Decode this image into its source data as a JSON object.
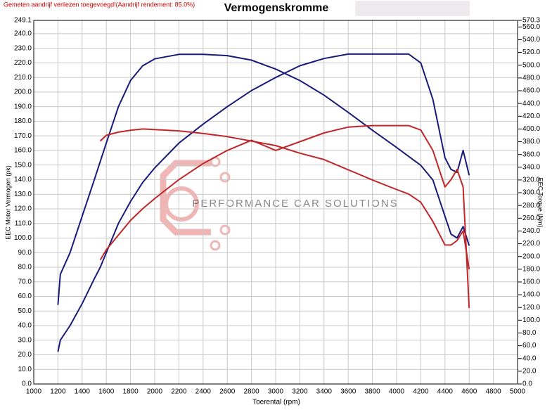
{
  "chart_data": {
    "type": "line",
    "title": "Vermogenskromme",
    "subtitle": "Gemeten aandrijf verliezen toegevoegd!(Aandrijf rendement: 85.0%)",
    "watermark": "PERFORMANCE CAR SOLUTIONS",
    "xlabel": "Toerental (rpm)",
    "ylabel": "EEC Motor Vermogen (pk)",
    "y2label": "EEC Torque (Nm)",
    "grid": true,
    "xlim": [
      1000,
      5000
    ],
    "xticks": [
      1000,
      1200,
      1400,
      1600,
      1800,
      2000,
      2200,
      2400,
      2600,
      2800,
      3000,
      3200,
      3400,
      3600,
      3800,
      4000,
      4200,
      4400,
      4600,
      4800,
      5000
    ],
    "ylim": [
      0,
      249.1
    ],
    "yticks": [
      {
        "value": 0,
        "label": "0.0"
      },
      {
        "value": 10,
        "label": "10.0"
      },
      {
        "value": 20,
        "label": "20.0"
      },
      {
        "value": 30,
        "label": "30.0"
      },
      {
        "value": 40,
        "label": "40.0"
      },
      {
        "value": 50,
        "label": "50.0"
      },
      {
        "value": 60,
        "label": "60.0"
      },
      {
        "value": 70,
        "label": "70.0"
      },
      {
        "value": 80,
        "label": "80.0"
      },
      {
        "value": 90,
        "label": "90.0"
      },
      {
        "value": 100,
        "label": "100.0"
      },
      {
        "value": 110,
        "label": "110.0"
      },
      {
        "value": 120,
        "label": "120.0"
      },
      {
        "value": 130,
        "label": "130.0"
      },
      {
        "value": 140,
        "label": "140.0"
      },
      {
        "value": 150,
        "label": "150.0"
      },
      {
        "value": 160,
        "label": "160.0"
      },
      {
        "value": 170,
        "label": "170.0"
      },
      {
        "value": 180,
        "label": "180.0"
      },
      {
        "value": 190,
        "label": "190.0"
      },
      {
        "value": 200,
        "label": "200.0"
      },
      {
        "value": 210,
        "label": "210.0"
      },
      {
        "value": 220,
        "label": "220.0"
      },
      {
        "value": 230,
        "label": "230.0"
      },
      {
        "value": 240,
        "label": "240.0"
      },
      249.1
    ],
    "y2lim": [
      0,
      570.3
    ],
    "y2ticks": [
      {
        "value": 0,
        "label": "0.0"
      },
      {
        "value": 20,
        "label": "20.0"
      },
      {
        "value": 40,
        "label": "40.0"
      },
      {
        "value": 60,
        "label": "60.0"
      },
      {
        "value": 80,
        "label": "80.0"
      },
      {
        "value": 100,
        "label": "100.0"
      },
      {
        "value": 120,
        "label": "120.0"
      },
      {
        "value": 140,
        "label": "140.0"
      },
      {
        "value": 160,
        "label": "160.0"
      },
      {
        "value": 180,
        "label": "180.0"
      },
      {
        "value": 200,
        "label": "200.0"
      },
      {
        "value": 220,
        "label": "220.0"
      },
      {
        "value": 240,
        "label": "240.0"
      },
      {
        "value": 260,
        "label": "260.0"
      },
      {
        "value": 280,
        "label": "280.0"
      },
      {
        "value": 300,
        "label": "300.0"
      },
      {
        "value": 320,
        "label": "320.0"
      },
      {
        "value": 340,
        "label": "340.0"
      },
      {
        "value": 360,
        "label": "360.0"
      },
      {
        "value": 380,
        "label": "380.0"
      },
      {
        "value": 400,
        "label": "400.0"
      },
      {
        "value": 420,
        "label": "420.0"
      },
      {
        "value": 440,
        "label": "440.0"
      },
      {
        "value": 460,
        "label": "460.0"
      },
      {
        "value": 480,
        "label": "480.0"
      },
      {
        "value": 500,
        "label": "500.0"
      },
      {
        "value": 520,
        "label": "520.0"
      },
      {
        "value": 540,
        "label": "540.0"
      },
      {
        "value": 560,
        "label": "560.0"
      },
      570.3
    ],
    "x": [
      1200,
      1220,
      1300,
      1400,
      1500,
      1550,
      1600,
      1700,
      1800,
      1900,
      2000,
      2200,
      2400,
      2600,
      2800,
      3000,
      3200,
      3400,
      3600,
      3800,
      4000,
      4100,
      4200,
      4300,
      4400,
      4450,
      4500,
      4550,
      4600
    ],
    "series": [
      {
        "color": "#1a1a7a",
        "values": [
          22,
          30,
          40,
          55,
          72,
          80,
          90,
          110,
          125,
          138,
          148,
          165,
          178,
          190,
          201,
          210,
          218,
          223,
          226,
          226,
          226,
          226,
          220,
          195,
          155,
          147,
          145,
          160,
          143
        ]
      },
      {
        "color": "#1a1a7a",
        "axis": "y2",
        "values": [
          124,
          172,
          206,
          263,
          320,
          349,
          378,
          435,
          476,
          499,
          510,
          517,
          517,
          515,
          508,
          494,
          476,
          453,
          426,
          398,
          371,
          357,
          343,
          320,
          263,
          235,
          229,
          247,
          217
        ]
      },
      {
        "color": "#c0262a",
        "values": [
          null,
          null,
          null,
          null,
          null,
          85,
          92,
          102,
          112,
          120,
          127,
          140,
          151,
          160,
          167,
          160,
          166,
          172,
          176,
          177,
          177,
          177,
          174,
          160,
          135,
          140,
          147,
          135,
          52
        ]
      },
      {
        "color": "#c0262a",
        "axis": "y2",
        "values": [
          null,
          null,
          null,
          null,
          null,
          381,
          390,
          395,
          398,
          400,
          399,
          397,
          393,
          388,
          381,
          374,
          362,
          352,
          336,
          320,
          305,
          298,
          285,
          255,
          218,
          218,
          225,
          240,
          180
        ]
      }
    ]
  }
}
